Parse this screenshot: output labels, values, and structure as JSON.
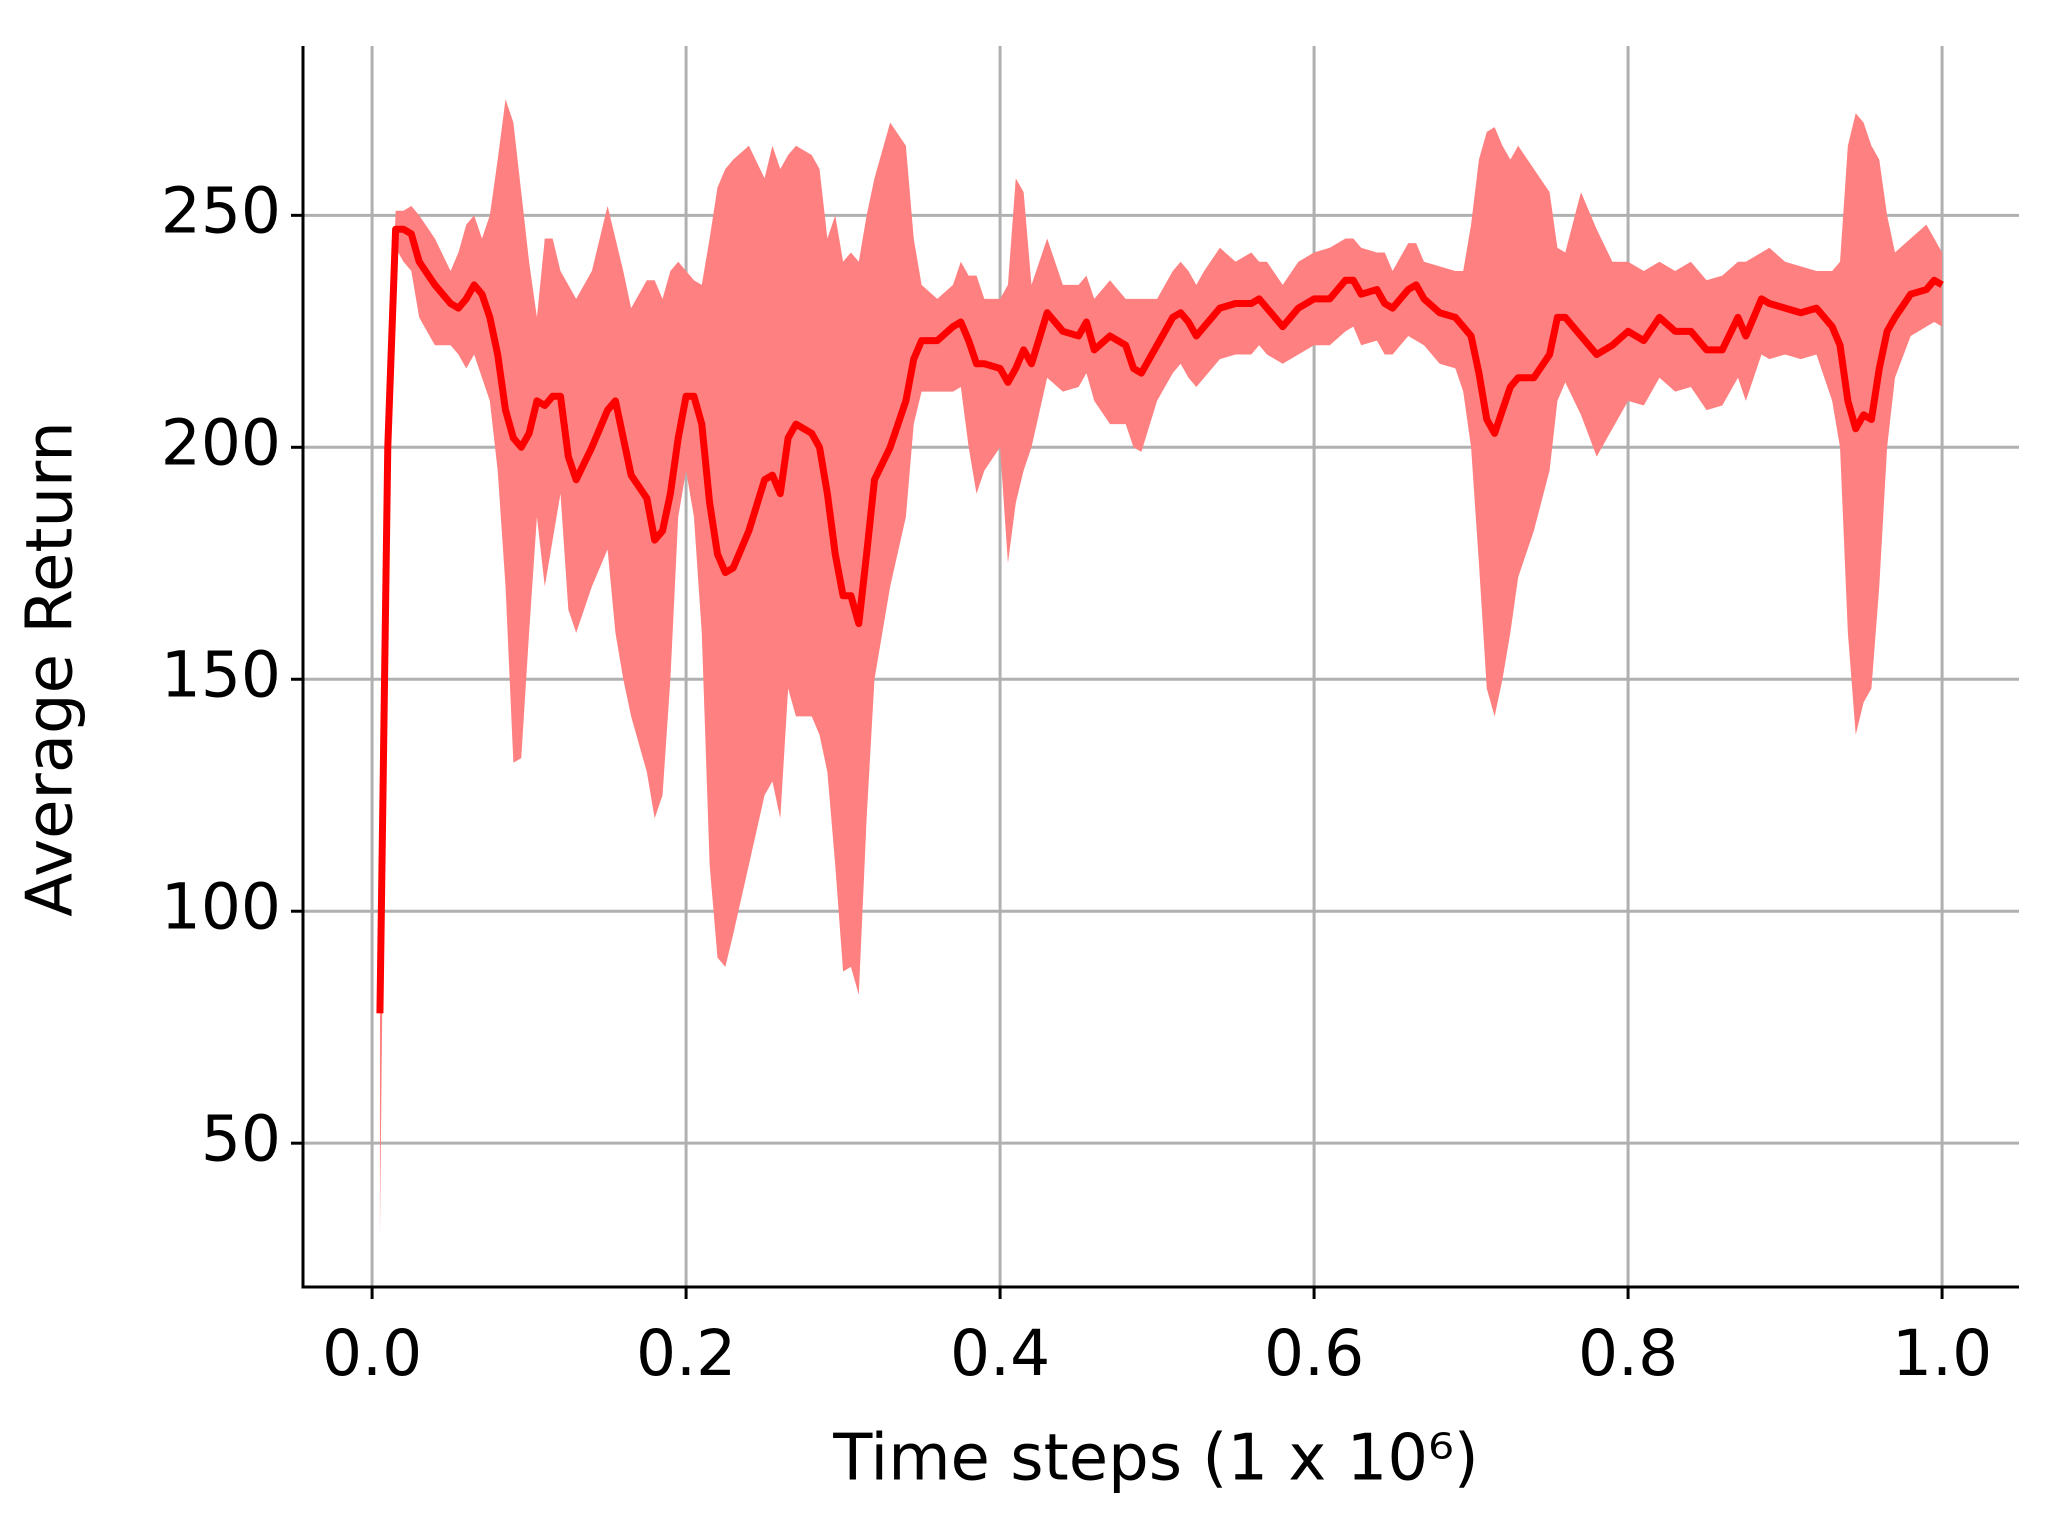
{
  "chart_data": {
    "type": "line",
    "xlabel": "Time steps (1 x 10⁶)",
    "ylabel": "Average Return",
    "color": "#ff0000",
    "band_color": "#ff8080",
    "grid": true,
    "xlim": [
      -0.044,
      1.049
    ],
    "ylim": [
      19,
      286.5
    ],
    "xticks": [
      {
        "value": 0,
        "label": "0.0"
      },
      0.2,
      0.4,
      0.6,
      0.8,
      {
        "value": 1,
        "label": "1.0"
      }
    ],
    "yticks": [
      50,
      100,
      150,
      200,
      250
    ],
    "x": [
      0.005,
      0.01,
      0.015,
      0.02,
      0.025,
      0.03,
      0.04,
      0.05,
      0.055,
      0.06,
      0.065,
      0.07,
      0.075,
      0.08,
      0.085,
      0.09,
      0.095,
      0.1,
      0.105,
      0.11,
      0.115,
      0.12,
      0.125,
      0.13,
      0.14,
      0.15,
      0.155,
      0.16,
      0.165,
      0.175,
      0.18,
      0.185,
      0.19,
      0.195,
      0.2,
      0.205,
      0.21,
      0.215,
      0.22,
      0.225,
      0.23,
      0.24,
      0.25,
      0.255,
      0.26,
      0.265,
      0.27,
      0.28,
      0.285,
      0.29,
      0.295,
      0.3,
      0.305,
      0.31,
      0.315,
      0.32,
      0.33,
      0.34,
      0.345,
      0.35,
      0.36,
      0.37,
      0.375,
      0.38,
      0.385,
      0.39,
      0.4,
      0.405,
      0.41,
      0.415,
      0.42,
      0.43,
      0.44,
      0.45,
      0.455,
      0.46,
      0.47,
      0.48,
      0.485,
      0.49,
      0.5,
      0.51,
      0.515,
      0.52,
      0.525,
      0.53,
      0.54,
      0.55,
      0.56,
      0.565,
      0.57,
      0.58,
      0.59,
      0.6,
      0.61,
      0.62,
      0.625,
      0.63,
      0.64,
      0.645,
      0.65,
      0.66,
      0.665,
      0.67,
      0.68,
      0.69,
      0.695,
      0.7,
      0.705,
      0.71,
      0.715,
      0.72,
      0.725,
      0.73,
      0.74,
      0.75,
      0.755,
      0.76,
      0.77,
      0.78,
      0.79,
      0.8,
      0.81,
      0.82,
      0.83,
      0.84,
      0.85,
      0.86,
      0.87,
      0.875,
      0.885,
      0.89,
      0.9,
      0.91,
      0.92,
      0.93,
      0.935,
      0.94,
      0.945,
      0.95,
      0.955,
      0.96,
      0.965,
      0.97,
      0.98,
      0.99,
      0.995,
      1.0
    ],
    "values": [
      78,
      200,
      247,
      247,
      246,
      240,
      235,
      231,
      230,
      232,
      235,
      233,
      228,
      220,
      208,
      202,
      200,
      203,
      210,
      209,
      211,
      211,
      198,
      193,
      200,
      208,
      210,
      202,
      194,
      189,
      180,
      182,
      190,
      202,
      211,
      211,
      205,
      188,
      177,
      173,
      174,
      182,
      193,
      194,
      190,
      202,
      205,
      203,
      200,
      190,
      177,
      168,
      168,
      162,
      177,
      193,
      200,
      210,
      219,
      223,
      223,
      226,
      227,
      223,
      218,
      218,
      217,
      214,
      217,
      221,
      218,
      229,
      225,
      224,
      227,
      221,
      224,
      222,
      217,
      216,
      222,
      228,
      229,
      227,
      224,
      226,
      230,
      231,
      231,
      232,
      230,
      226,
      230,
      232,
      232,
      236,
      236,
      233,
      234,
      231,
      230,
      234,
      235,
      232,
      229,
      228,
      226,
      224,
      216,
      206,
      203,
      208,
      213,
      215,
      215,
      220,
      228,
      228,
      224,
      220,
      222,
      225,
      223,
      228,
      225,
      225,
      221,
      221,
      228,
      224,
      232,
      231,
      230,
      229,
      230,
      226,
      222,
      210,
      204,
      207,
      206,
      217,
      225,
      228,
      233,
      234,
      236,
      235
    ],
    "lower": [
      30,
      195,
      243,
      240,
      238,
      228,
      222,
      222,
      220,
      217,
      220,
      215,
      210,
      195,
      170,
      132,
      133,
      160,
      185,
      170,
      180,
      190,
      165,
      160,
      170,
      178,
      160,
      150,
      142,
      130,
      120,
      125,
      150,
      185,
      195,
      185,
      160,
      110,
      90,
      88,
      95,
      110,
      125,
      128,
      120,
      148,
      142,
      142,
      138,
      130,
      110,
      87,
      88,
      82,
      120,
      150,
      170,
      185,
      205,
      212,
      212,
      212,
      213,
      200,
      190,
      195,
      200,
      175,
      188,
      195,
      200,
      215,
      212,
      213,
      216,
      210,
      205,
      205,
      200,
      199,
      210,
      216,
      218,
      215,
      213,
      215,
      219,
      220,
      220,
      222,
      220,
      218,
      220,
      222,
      222,
      225,
      226,
      222,
      223,
      220,
      220,
      224,
      223,
      222,
      218,
      217,
      212,
      200,
      175,
      148,
      142,
      150,
      160,
      172,
      182,
      195,
      210,
      214,
      207,
      198,
      204,
      210,
      209,
      215,
      212,
      213,
      208,
      209,
      215,
      210,
      220,
      219,
      220,
      219,
      220,
      210,
      200,
      160,
      138,
      145,
      148,
      170,
      200,
      215,
      224,
      226,
      227,
      226
    ],
    "upper": [
      78,
      205,
      251,
      251,
      252,
      250,
      245,
      238,
      242,
      248,
      250,
      245,
      250,
      262,
      275,
      270,
      255,
      240,
      228,
      245,
      245,
      238,
      235,
      232,
      238,
      252,
      245,
      238,
      230,
      236,
      236,
      232,
      238,
      240,
      238,
      236,
      235,
      245,
      256,
      260,
      262,
      265,
      258,
      265,
      260,
      263,
      265,
      263,
      260,
      245,
      250,
      240,
      242,
      240,
      250,
      258,
      270,
      265,
      245,
      235,
      232,
      235,
      240,
      237,
      237,
      232,
      232,
      235,
      258,
      255,
      235,
      245,
      235,
      235,
      237,
      232,
      236,
      232,
      232,
      232,
      232,
      238,
      240,
      238,
      235,
      238,
      243,
      240,
      242,
      240,
      240,
      235,
      240,
      242,
      243,
      245,
      245,
      243,
      242,
      242,
      238,
      244,
      244,
      240,
      239,
      238,
      238,
      248,
      262,
      268,
      269,
      265,
      262,
      265,
      260,
      255,
      243,
      242,
      255,
      247,
      240,
      240,
      238,
      240,
      238,
      240,
      236,
      237,
      240,
      240,
      242,
      243,
      240,
      239,
      238,
      238,
      240,
      265,
      272,
      270,
      265,
      262,
      250,
      242,
      245,
      248,
      245,
      242
    ]
  }
}
